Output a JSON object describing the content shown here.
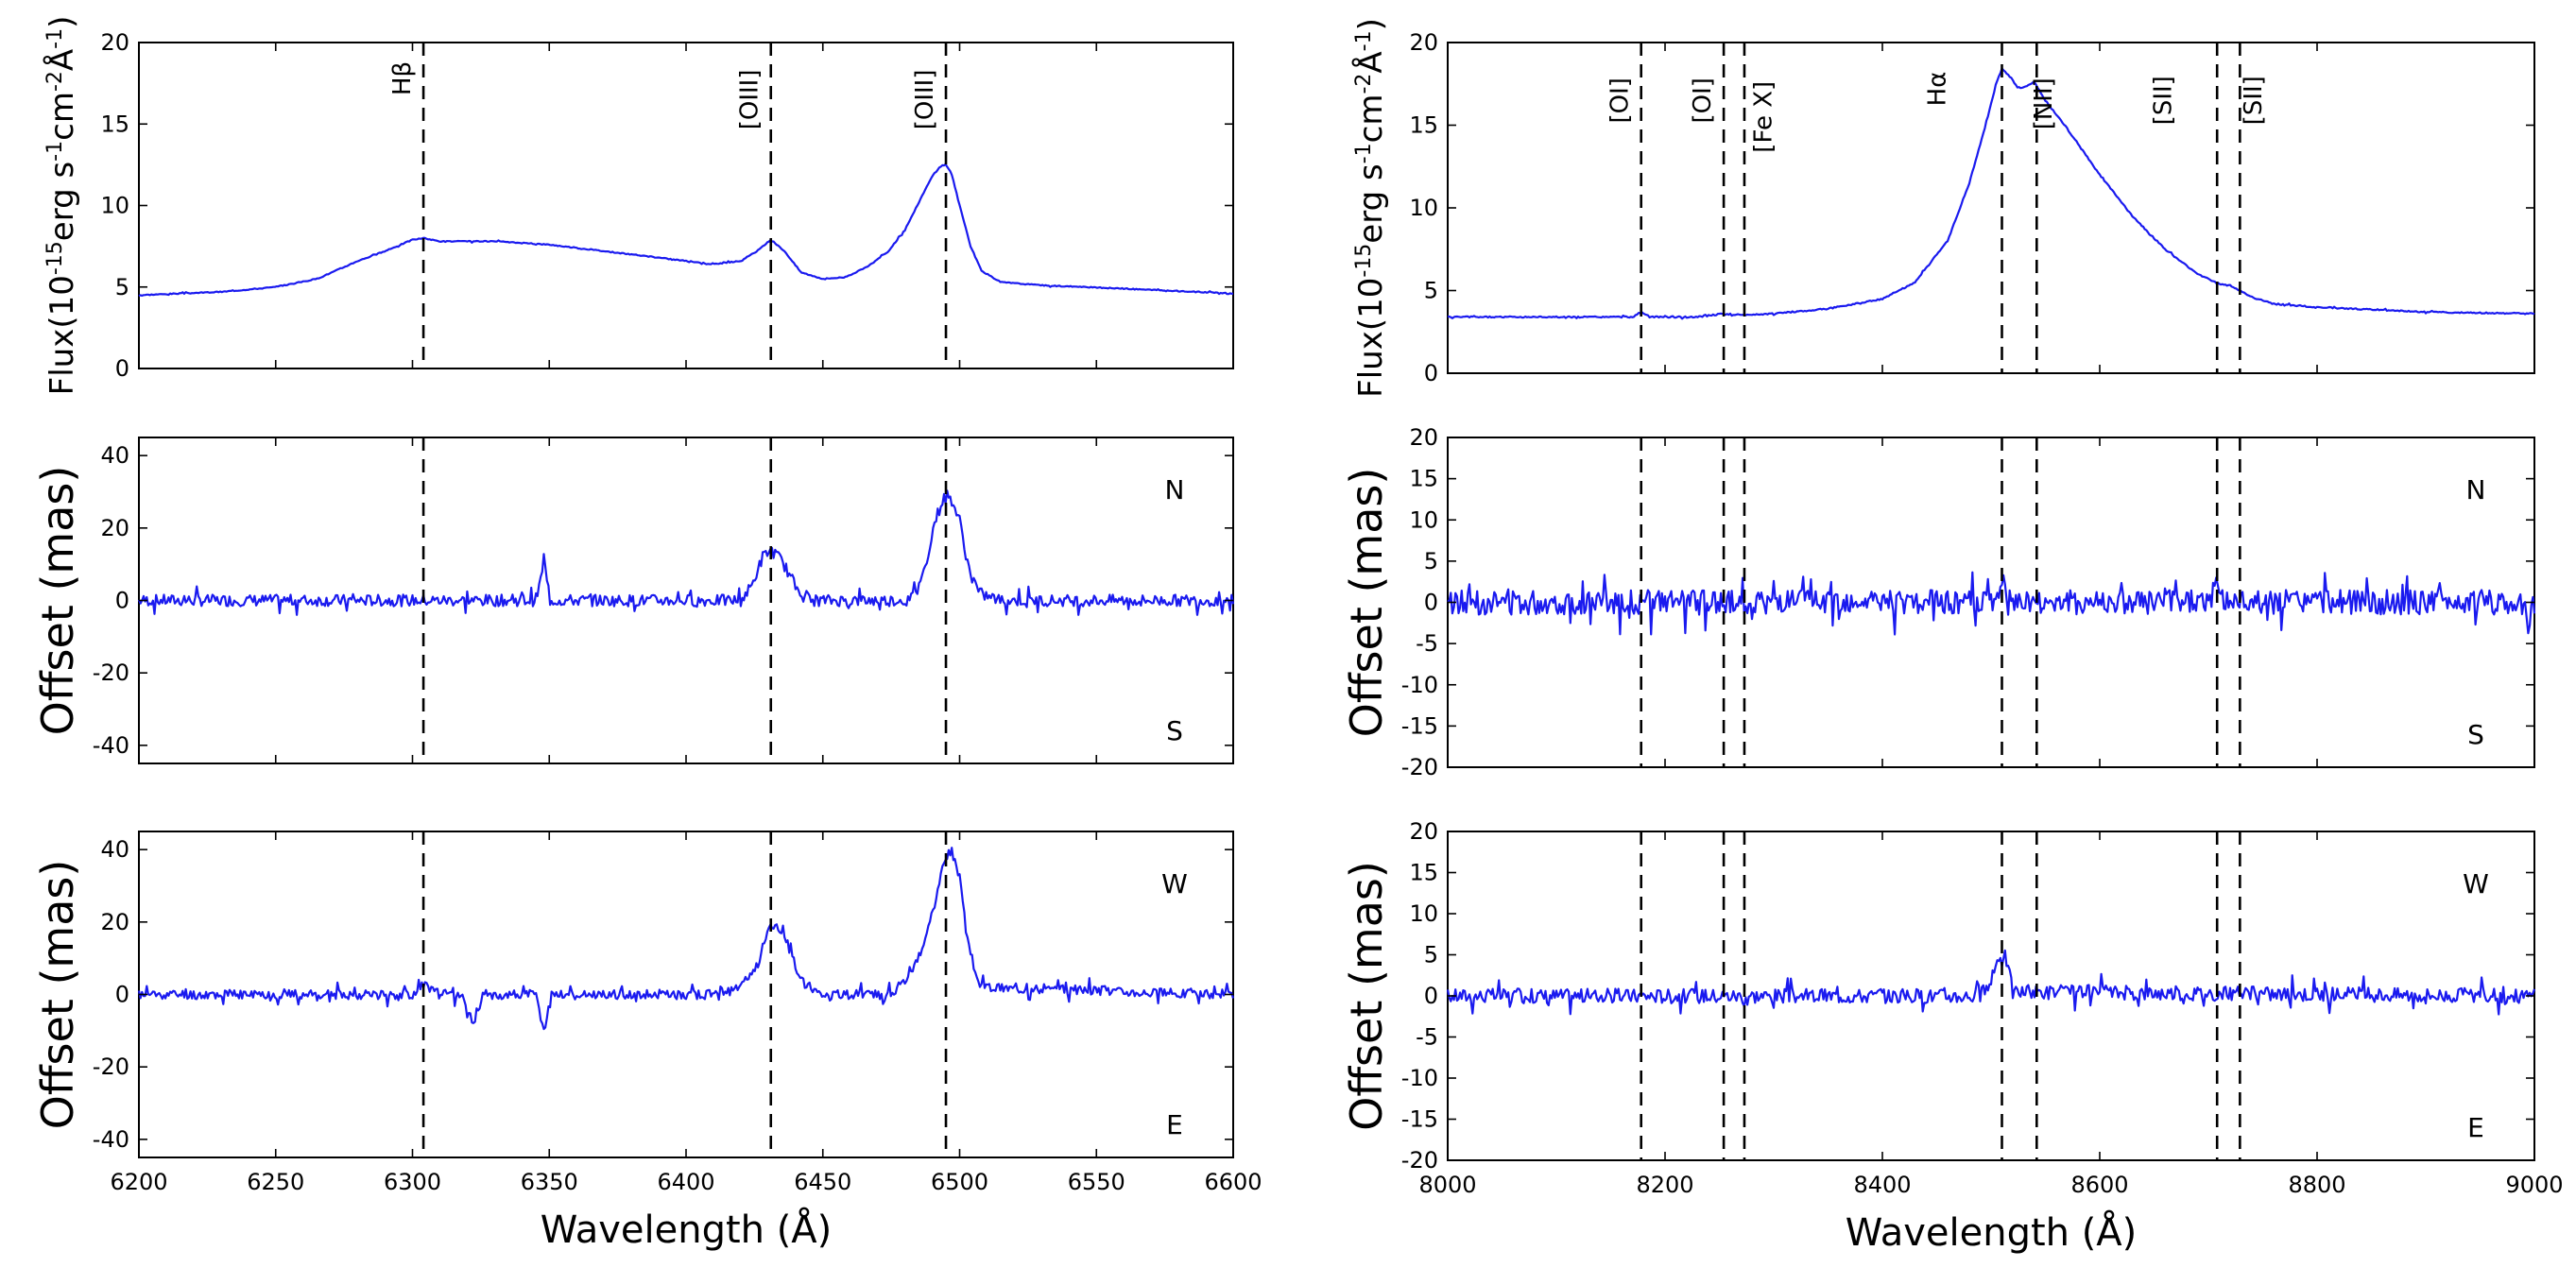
{
  "chart_data": [
    {
      "panel": "left-top",
      "type": "line",
      "ylabel": "Flux(10-15erg s-1cm-2Å-1)",
      "ylabel_parts": {
        "base": "Flux(10",
        "e1": "-15",
        "mid1": "erg s",
        "e2": "-1",
        "mid2": "cm",
        "e3": "-2",
        "mid3": "Å",
        "e4": "-1",
        "end": ")"
      },
      "xlim": [
        6200,
        6600
      ],
      "ylim": [
        0,
        20
      ],
      "xticks": [
        6200,
        6250,
        6300,
        6350,
        6400,
        6450,
        6500,
        6550,
        6600
      ],
      "yticks": [
        0,
        5,
        10,
        15,
        20
      ],
      "vlines": [
        6304,
        6431,
        6495
      ],
      "line_labels": [
        {
          "text": "Hβ",
          "x": 6304,
          "y": 17.8
        },
        {
          "text": "[OIII]",
          "x": 6431,
          "y": 16.5
        },
        {
          "text": "[OIII]",
          "x": 6495,
          "y": 16.5
        }
      ],
      "direction_labels": [],
      "series": [
        {
          "name": "flux",
          "x": [
            6200,
            6230,
            6250,
            6265,
            6272,
            6280,
            6290,
            6300,
            6304,
            6310,
            6330,
            6350,
            6370,
            6390,
            6410,
            6420,
            6426,
            6431,
            6436,
            6442,
            6450,
            6458,
            6466,
            6474,
            6480,
            6486,
            6490,
            6493,
            6495,
            6497,
            6500,
            6504,
            6508,
            6515,
            6530,
            6560,
            6600
          ],
          "y": [
            4.5,
            4.7,
            5.0,
            5.5,
            6.0,
            6.6,
            7.2,
            7.9,
            8.0,
            7.8,
            7.8,
            7.6,
            7.2,
            6.8,
            6.4,
            6.6,
            7.2,
            7.9,
            7.2,
            5.9,
            5.5,
            5.6,
            6.2,
            7.2,
            8.5,
            10.5,
            11.8,
            12.4,
            12.5,
            12.0,
            10.0,
            7.5,
            6.0,
            5.3,
            5.1,
            4.9,
            4.6
          ]
        }
      ],
      "noise": {
        "amp": 0.03,
        "seed": 3
      }
    },
    {
      "panel": "left-mid",
      "type": "line",
      "ylabel": "Offset (mas)",
      "xlim": [
        6200,
        6600
      ],
      "ylim": [
        -45,
        45
      ],
      "xticks": [
        6200,
        6250,
        6300,
        6350,
        6400,
        6450,
        6500,
        6550,
        6600
      ],
      "yticks": [
        -40,
        -20,
        0,
        20,
        40
      ],
      "vlines": [
        6304,
        6431,
        6495
      ],
      "line_labels": [],
      "direction_labels": [
        {
          "text": "N",
          "pos": "top-right"
        },
        {
          "text": "S",
          "pos": "bottom-right"
        }
      ],
      "series": [
        {
          "name": "offset-ns",
          "x": [
            6200,
            6300,
            6345,
            6347,
            6348,
            6350,
            6420,
            6424,
            6428,
            6431,
            6435,
            6440,
            6446,
            6470,
            6482,
            6487,
            6491,
            6494,
            6497,
            6500,
            6503,
            6507,
            6515,
            6600
          ],
          "y": [
            0,
            0,
            0,
            6,
            12,
            0,
            0,
            4,
            12,
            14,
            11,
            4,
            0,
            0,
            0,
            8,
            22,
            28,
            28,
            22,
            10,
            2,
            0,
            0
          ]
        }
      ],
      "noise": {
        "amp": 1.6,
        "seed": 7
      }
    },
    {
      "panel": "left-bottom",
      "type": "line",
      "ylabel": "Offset (mas)",
      "xlabel": "Wavelength (Å)",
      "xlim": [
        6200,
        6600
      ],
      "ylim": [
        -45,
        45
      ],
      "xticks": [
        6200,
        6250,
        6300,
        6350,
        6400,
        6450,
        6500,
        6550,
        6600
      ],
      "yticks": [
        -40,
        -20,
        0,
        20,
        40
      ],
      "vlines": [
        6304,
        6431,
        6495
      ],
      "line_labels": [],
      "direction_labels": [
        {
          "text": "W",
          "pos": "top-right"
        },
        {
          "text": "E",
          "pos": "bottom-right"
        }
      ],
      "series": [
        {
          "name": "offset-we",
          "x": [
            6200,
            6300,
            6304,
            6310,
            6318,
            6322,
            6326,
            6345,
            6348,
            6351,
            6410,
            6420,
            6426,
            6430,
            6433,
            6437,
            6442,
            6450,
            6472,
            6480,
            6485,
            6490,
            6494,
            6497,
            6500,
            6503,
            6507,
            6512,
            6600
          ],
          "y": [
            0,
            0,
            3,
            0,
            0,
            -8,
            0,
            0,
            -10,
            0,
            0,
            2,
            8,
            18,
            20,
            14,
            4,
            0,
            0,
            4,
            10,
            22,
            36,
            40,
            32,
            14,
            3,
            2,
            0
          ]
        }
      ],
      "noise": {
        "amp": 1.3,
        "seed": 11
      }
    },
    {
      "panel": "right-top",
      "type": "line",
      "ylabel": "Flux(10-15erg s-1cm-2Å-1)",
      "ylabel_parts": {
        "base": "Flux(10",
        "e1": "-15",
        "mid1": "erg s",
        "e2": "-1",
        "mid2": "cm",
        "e3": "-2",
        "mid3": "Å",
        "e4": "-1",
        "end": ")"
      },
      "xlim": [
        8000,
        9000
      ],
      "ylim": [
        0,
        20
      ],
      "xticks": [
        8000,
        8200,
        8400,
        8600,
        8800,
        9000
      ],
      "yticks": [
        0,
        5,
        10,
        15,
        20
      ],
      "vlines": [
        8178,
        8254,
        8273,
        8510,
        8542,
        8708,
        8729
      ],
      "line_labels": [
        {
          "text": "[OI]",
          "x": 8178,
          "y": 16.5
        },
        {
          "text": "[OI]",
          "x": 8254,
          "y": 16.5
        },
        {
          "text": "[Fe X]",
          "x": 8310,
          "y": 15.5
        },
        {
          "text": "Hα",
          "x": 8470,
          "y": 17.2
        },
        {
          "text": "[NII]",
          "x": 8568,
          "y": 16.3
        },
        {
          "text": "[SII]",
          "x": 8678,
          "y": 16.5
        },
        {
          "text": "[SII]",
          "x": 8761,
          "y": 16.5
        }
      ],
      "direction_labels": [],
      "series": [
        {
          "name": "flux",
          "x": [
            8000,
            8100,
            8170,
            8178,
            8186,
            8230,
            8254,
            8262,
            8300,
            8350,
            8400,
            8430,
            8460,
            8480,
            8495,
            8505,
            8510,
            8518,
            8525,
            8533,
            8540,
            8550,
            8570,
            8600,
            8630,
            8660,
            8690,
            8710,
            8720,
            8729,
            8740,
            8760,
            8800,
            8900,
            9000
          ],
          "y": [
            3.4,
            3.4,
            3.4,
            3.7,
            3.4,
            3.4,
            3.6,
            3.5,
            3.6,
            3.9,
            4.5,
            5.5,
            8.0,
            11.5,
            15.0,
            17.6,
            18.4,
            17.9,
            17.2,
            17.4,
            17.6,
            16.5,
            14.8,
            12.0,
            9.5,
            7.5,
            6.0,
            5.4,
            5.3,
            5.0,
            4.6,
            4.2,
            4.0,
            3.7,
            3.6
          ]
        }
      ],
      "noise": {
        "amp": 0.04,
        "seed": 5
      }
    },
    {
      "panel": "right-mid",
      "type": "line",
      "ylabel": "Offset (mas)",
      "xlim": [
        8000,
        9000
      ],
      "ylim": [
        -20,
        20
      ],
      "xticks": [
        8000,
        8200,
        8400,
        8600,
        8800,
        9000
      ],
      "yticks": [
        -20,
        -15,
        -10,
        -5,
        0,
        5,
        10,
        15,
        20
      ],
      "vlines": [
        8178,
        8254,
        8273,
        8510,
        8542,
        8708,
        8729
      ],
      "line_labels": [],
      "direction_labels": [
        {
          "text": "N",
          "pos": "top-right"
        },
        {
          "text": "S",
          "pos": "bottom-right"
        }
      ],
      "series": [
        {
          "name": "offset-ns",
          "x": [
            8000,
            8505,
            8510,
            8515,
            8700,
            8708,
            8716,
            8990,
            8995,
            9000
          ],
          "y": [
            0,
            0,
            2.5,
            0,
            0,
            2.5,
            0,
            0,
            -3,
            0
          ]
        }
      ],
      "noise": {
        "amp": 1.5,
        "seed": 13
      }
    },
    {
      "panel": "right-bottom",
      "type": "line",
      "ylabel": "Offset (mas)",
      "xlabel": "Wavelength (Å)",
      "xlim": [
        8000,
        9000
      ],
      "ylim": [
        -20,
        20
      ],
      "xticks": [
        8000,
        8200,
        8400,
        8600,
        8800,
        9000
      ],
      "yticks": [
        -20,
        -15,
        -10,
        -5,
        0,
        5,
        10,
        15,
        20
      ],
      "vlines": [
        8178,
        8254,
        8273,
        8510,
        8542,
        8708,
        8729
      ],
      "line_labels": [],
      "direction_labels": [
        {
          "text": "W",
          "pos": "top-right"
        },
        {
          "text": "E",
          "pos": "bottom-right"
        }
      ],
      "series": [
        {
          "name": "offset-we",
          "x": [
            8000,
            8490,
            8500,
            8506,
            8510,
            8514,
            8520,
            9000
          ],
          "y": [
            0,
            0,
            1.5,
            4.5,
            5.5,
            4.5,
            0.5,
            0
          ]
        }
      ],
      "noise": {
        "amp": 0.9,
        "seed": 17
      }
    }
  ]
}
